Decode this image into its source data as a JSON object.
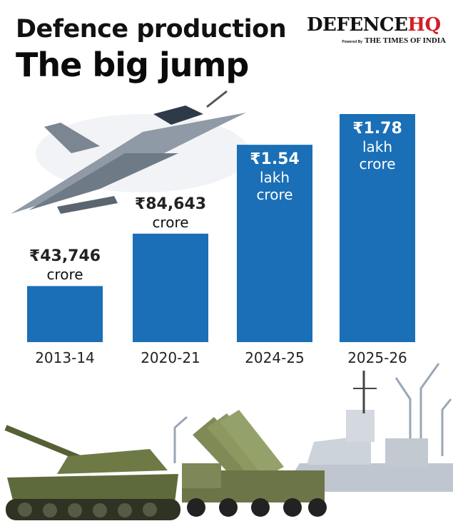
{
  "brand": {
    "name": "DEFENCE",
    "accent": "HQ",
    "powered_by": "Powered By",
    "partner": "THE TIMES OF INDIA"
  },
  "chart_data": {
    "type": "bar",
    "title": "Defence production",
    "subtitle": "The big jump",
    "categories": [
      "2013-14",
      "2020-21",
      "2024-25",
      "2025-26"
    ],
    "values": [
      43746,
      84643,
      154000,
      178000
    ],
    "value_unit": "₹ crore",
    "data_labels": [
      {
        "value": "₹43,746",
        "unit": "crore"
      },
      {
        "value": "₹84,643",
        "unit": "crore"
      },
      {
        "value": "₹1.54",
        "unit": "lakh crore"
      },
      {
        "value": "₹1.78",
        "unit": "lakh crore"
      }
    ],
    "bar_color": "#1a6fb7",
    "grid": false
  },
  "illustrations": [
    "fighter-jet",
    "tank",
    "missile-launcher-truck",
    "warship",
    "port-cranes"
  ]
}
